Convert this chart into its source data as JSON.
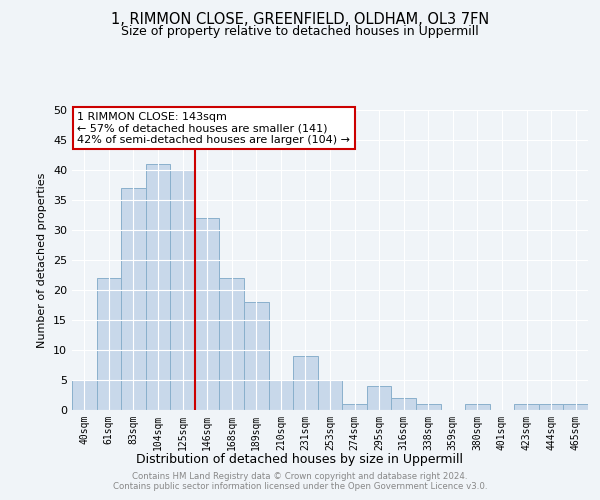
{
  "title_line1": "1, RIMMON CLOSE, GREENFIELD, OLDHAM, OL3 7FN",
  "title_line2": "Size of property relative to detached houses in Uppermill",
  "xlabel": "Distribution of detached houses by size in Uppermill",
  "ylabel": "Number of detached properties",
  "bar_labels": [
    "40sqm",
    "61sqm",
    "83sqm",
    "104sqm",
    "125sqm",
    "146sqm",
    "168sqm",
    "189sqm",
    "210sqm",
    "231sqm",
    "253sqm",
    "274sqm",
    "295sqm",
    "316sqm",
    "338sqm",
    "359sqm",
    "380sqm",
    "401sqm",
    "423sqm",
    "444sqm",
    "465sqm"
  ],
  "bar_values": [
    5,
    22,
    37,
    41,
    40,
    32,
    22,
    18,
    5,
    9,
    5,
    1,
    4,
    2,
    1,
    0,
    1,
    0,
    1,
    1,
    1
  ],
  "bar_color": "#c8d8ea",
  "bar_edge_color": "#8ab0cc",
  "vline_color": "#cc0000",
  "ylim": [
    0,
    50
  ],
  "yticks": [
    0,
    5,
    10,
    15,
    20,
    25,
    30,
    35,
    40,
    45,
    50
  ],
  "annotation_title": "1 RIMMON CLOSE: 143sqm",
  "annotation_line1": "← 57% of detached houses are smaller (141)",
  "annotation_line2": "42% of semi-detached houses are larger (104) →",
  "annotation_box_color": "#ffffff",
  "annotation_box_edge": "#cc0000",
  "footer_line1": "Contains HM Land Registry data © Crown copyright and database right 2024.",
  "footer_line2": "Contains public sector information licensed under the Open Government Licence v3.0.",
  "bg_color": "#f0f4f8",
  "grid_color": "#ffffff"
}
